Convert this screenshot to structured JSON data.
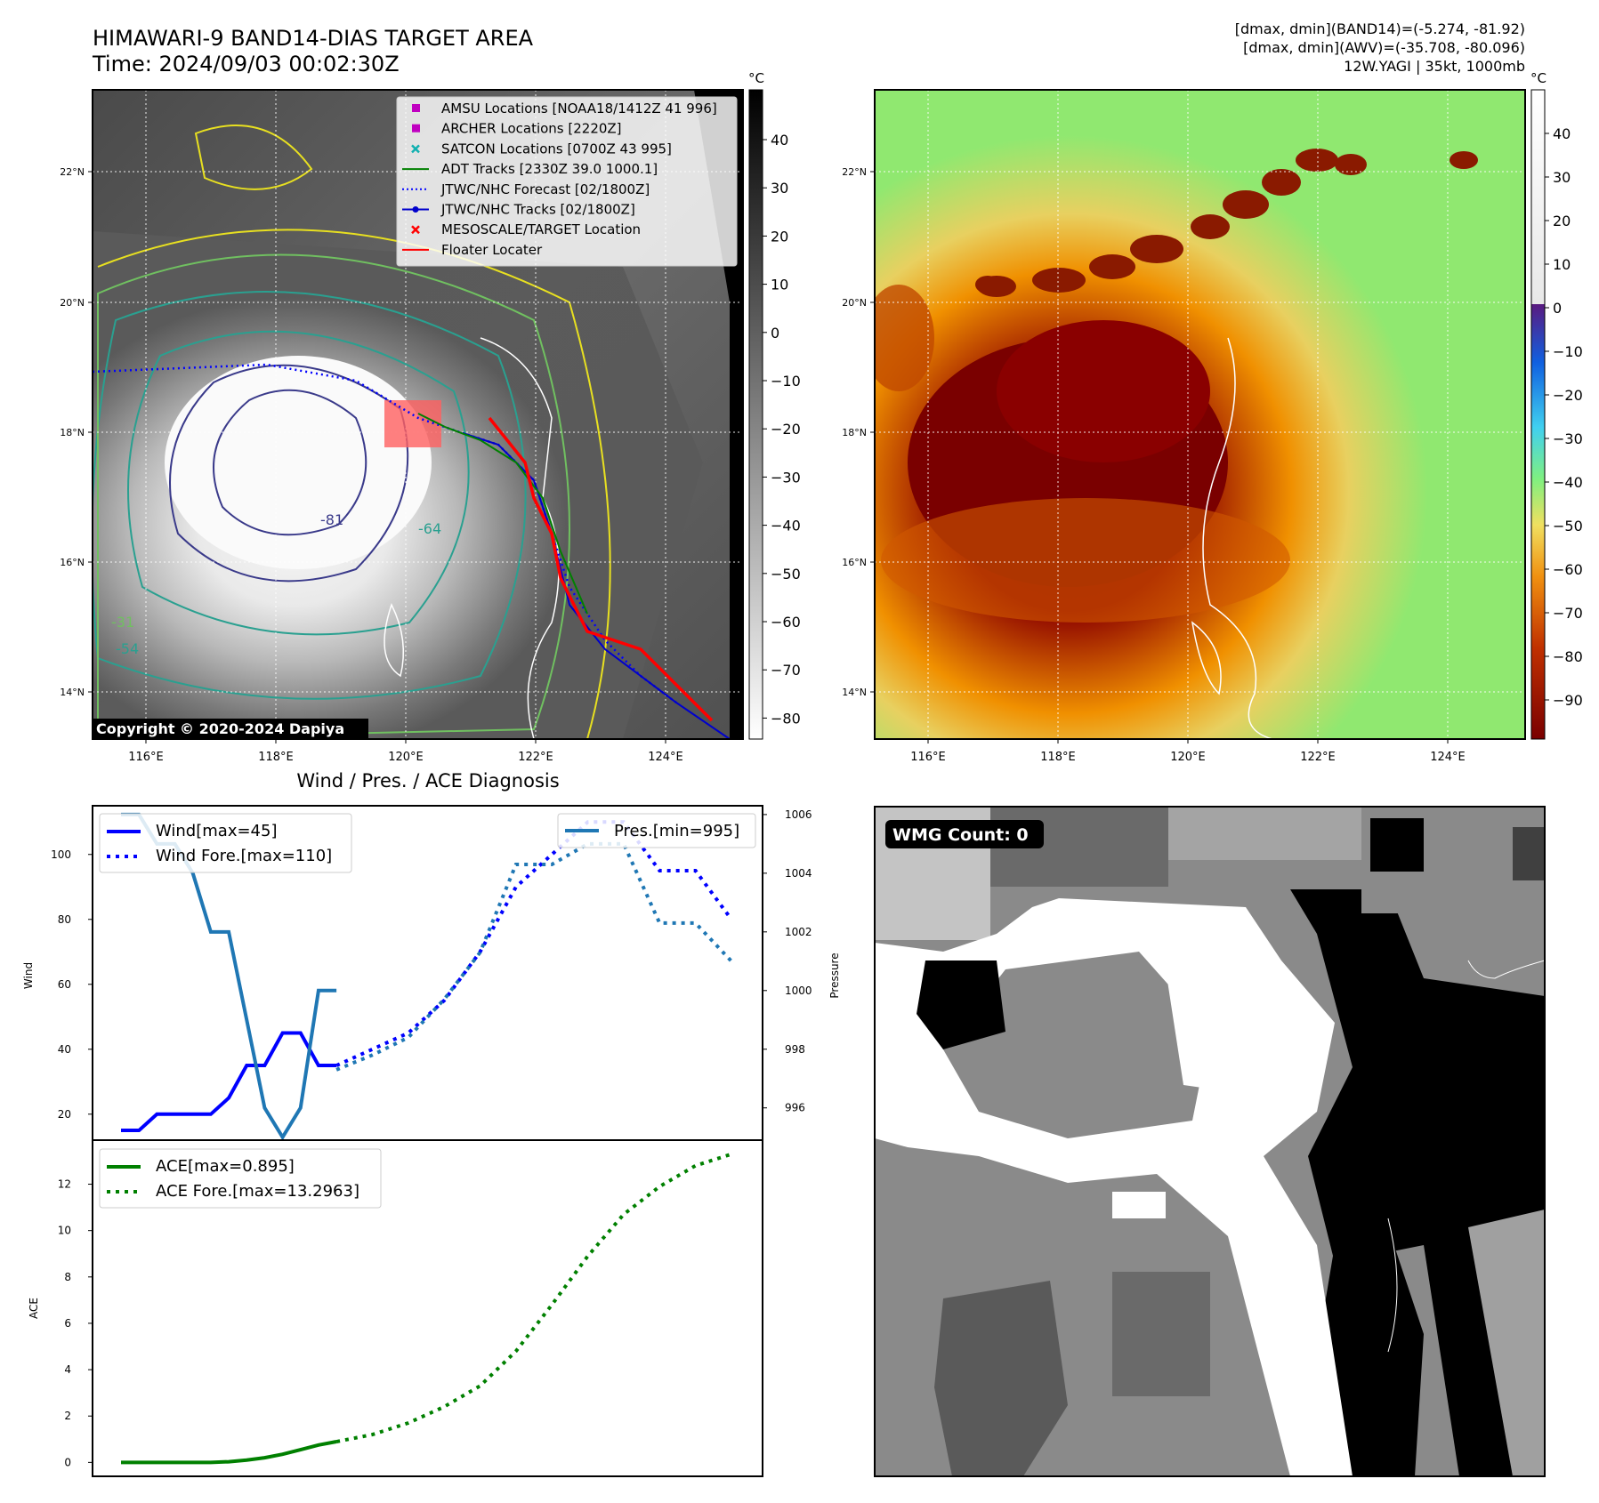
{
  "header": {
    "title_line1": "HIMAWARI-9 BAND14-DIAS TARGET AREA",
    "title_line2": "Time: 2024/09/03 00:02:30Z",
    "info_line1": "[dmax, dmin](BAND14)=(-5.274, -81.92)",
    "info_line2": "[dmax, dmin](AWV)=(-35.708, -80.096)",
    "info_line3": "12W.YAGI | 35kt, 1000mb"
  },
  "map_axes": {
    "lon_labels": [
      "116°E",
      "118°E",
      "120°E",
      "122°E",
      "124°E"
    ],
    "lat_labels": [
      "22°N",
      "20°N",
      "18°N",
      "16°N",
      "14°N"
    ]
  },
  "ir_panel": {
    "legend": [
      {
        "label": "AMSU Locations [NOAA18/1412Z 41 996]",
        "marker": "square",
        "color": "#c000c0"
      },
      {
        "label": "ARCHER Locations [2220Z]",
        "marker": "square",
        "color": "#c000c0"
      },
      {
        "label": "SATCON Locations [0700Z 43 995]",
        "marker": "x",
        "color": "#10b0b0"
      },
      {
        "label": "ADT Tracks [2330Z 39.0 1000.1]",
        "marker": "line",
        "color": "#008000"
      },
      {
        "label": "JTWC/NHC Forecast [02/1800Z]",
        "marker": "dotted",
        "color": "#0000ff"
      },
      {
        "label": "JTWC/NHC Tracks [02/1800Z]",
        "marker": "line-dot",
        "color": "#0000cc"
      },
      {
        "label": "MESOSCALE/TARGET Location",
        "marker": "x",
        "color": "#ff0000"
      },
      {
        "label": "Floater Locater",
        "marker": "line",
        "color": "#ff0000"
      }
    ],
    "contour_labels": [
      "-81",
      "-64",
      "-54",
      "-31"
    ],
    "copyright": "Copyright © 2020-2024 Dapiya",
    "colorbar": {
      "unit": "°C",
      "ticks": [
        "40",
        "30",
        "20",
        "10",
        "0",
        "−10",
        "−20",
        "−30",
        "−40",
        "−50",
        "−60",
        "−70",
        "−80"
      ]
    }
  },
  "awv_panel": {
    "colorbar": {
      "unit": "°C",
      "ticks": [
        "40",
        "30",
        "20",
        "10",
        "0",
        "−10",
        "−20",
        "−30",
        "−40",
        "−50",
        "−60",
        "−70",
        "−80",
        "−90"
      ]
    }
  },
  "wmg_panel": {
    "label": "WMG Count: 0"
  },
  "colors": {
    "wind": "#0000ff",
    "pressure": "#1f77b4",
    "ace": "#008000",
    "track": "#ff0000"
  },
  "chart_data": [
    {
      "type": "line",
      "title": "Wind / Pres. / ACE Diagnosis",
      "ylabel": "Wind",
      "y2label": "Pressure",
      "ylim": [
        12,
        115
      ],
      "y2lim": [
        994.9,
        1006.3
      ],
      "yticks": [
        "20",
        "40",
        "60",
        "80",
        "100"
      ],
      "y2ticks": [
        "996",
        "998",
        "1000",
        "1002",
        "1004",
        "1006"
      ],
      "series": [
        {
          "name": "Wind[max=45]",
          "axis": "left",
          "style": "solid",
          "x": [
            0,
            1,
            2,
            3,
            4,
            5,
            6,
            7,
            8,
            9,
            10,
            11,
            12
          ],
          "values": [
            15,
            15,
            20,
            20,
            20,
            20,
            25,
            35,
            35,
            45,
            45,
            35,
            35
          ]
        },
        {
          "name": "Wind Fore.[max=110]",
          "axis": "left",
          "style": "dotted",
          "x": [
            12,
            14,
            16,
            18,
            20,
            22,
            24,
            26,
            28,
            30,
            32,
            34
          ],
          "values": [
            35,
            40,
            45,
            55,
            70,
            90,
            100,
            110,
            110,
            95,
            95,
            80
          ]
        },
        {
          "name": "Pres.[min=995]",
          "axis": "right",
          "style": "solid",
          "x": [
            0,
            1,
            2,
            3,
            4,
            5,
            6,
            7,
            8,
            9,
            10,
            11,
            12
          ],
          "values": [
            1006,
            1006,
            1005,
            1005,
            1004,
            1002,
            1002,
            999,
            996,
            995,
            996,
            1000,
            1000
          ]
        },
        {
          "name": "",
          "axis": "right",
          "style": "dotted",
          "x": [
            12,
            14,
            16,
            18,
            20,
            22,
            24,
            26,
            28,
            30,
            32,
            34
          ],
          "values": [
            997.3,
            997.8,
            998.4,
            999.7,
            1001.3,
            1004.3,
            1004.3,
            1005.0,
            1005.0,
            1002.3,
            1002.3,
            1001.0
          ]
        }
      ]
    },
    {
      "type": "line",
      "ylabel": "ACE",
      "ylim": [
        -0.6,
        13.9
      ],
      "yticks": [
        "0",
        "2",
        "4",
        "6",
        "8",
        "10",
        "12"
      ],
      "series": [
        {
          "name": "ACE[max=0.895]",
          "style": "solid",
          "x": [
            0,
            1,
            2,
            3,
            4,
            5,
            6,
            7,
            8,
            9,
            10,
            11,
            12
          ],
          "values": [
            0,
            0,
            0,
            0,
            0,
            0,
            0.03,
            0.1,
            0.2,
            0.35,
            0.55,
            0.75,
            0.895
          ]
        },
        {
          "name": "ACE Fore.[max=13.2963]",
          "style": "dotted",
          "x": [
            12,
            14,
            16,
            18,
            20,
            22,
            24,
            26,
            28,
            30,
            32,
            34
          ],
          "values": [
            0.895,
            1.2,
            1.7,
            2.4,
            3.3,
            4.8,
            6.8,
            8.9,
            10.7,
            11.9,
            12.8,
            13.2963
          ]
        }
      ]
    }
  ]
}
